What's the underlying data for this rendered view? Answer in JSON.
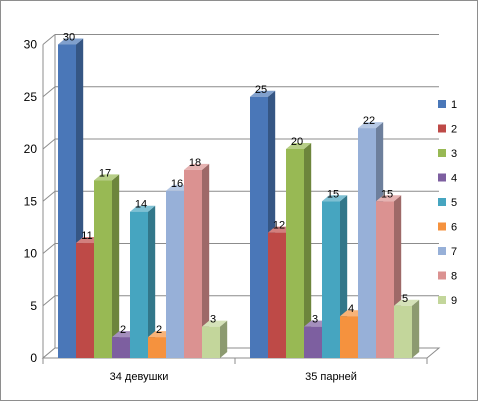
{
  "chart_data": {
    "type": "bar",
    "categories": [
      "34 девушки",
      "35 парней"
    ],
    "series": [
      {
        "name": "1",
        "values": [
          30,
          25
        ],
        "color": "#4a77b8"
      },
      {
        "name": "2",
        "values": [
          11,
          12
        ],
        "color": "#be4a47"
      },
      {
        "name": "3",
        "values": [
          17,
          20
        ],
        "color": "#98b954"
      },
      {
        "name": "4",
        "values": [
          2,
          3
        ],
        "color": "#7d5fa0"
      },
      {
        "name": "5",
        "values": [
          14,
          15
        ],
        "color": "#46a5c0"
      },
      {
        "name": "6",
        "values": [
          2,
          4
        ],
        "color": "#f5923e"
      },
      {
        "name": "7",
        "values": [
          16,
          22
        ],
        "color": "#97b0d8"
      },
      {
        "name": "8",
        "values": [
          18,
          15
        ],
        "color": "#db9291"
      },
      {
        "name": "9",
        "values": [
          3,
          5
        ],
        "color": "#c3d69b"
      }
    ],
    "y_ticks": [
      "0",
      "5",
      "10",
      "15",
      "20",
      "25",
      "30"
    ],
    "ylim": [
      0,
      30
    ],
    "grid": true,
    "legend_position": "right",
    "data_labels": true,
    "style": "3d-clustered-column"
  }
}
